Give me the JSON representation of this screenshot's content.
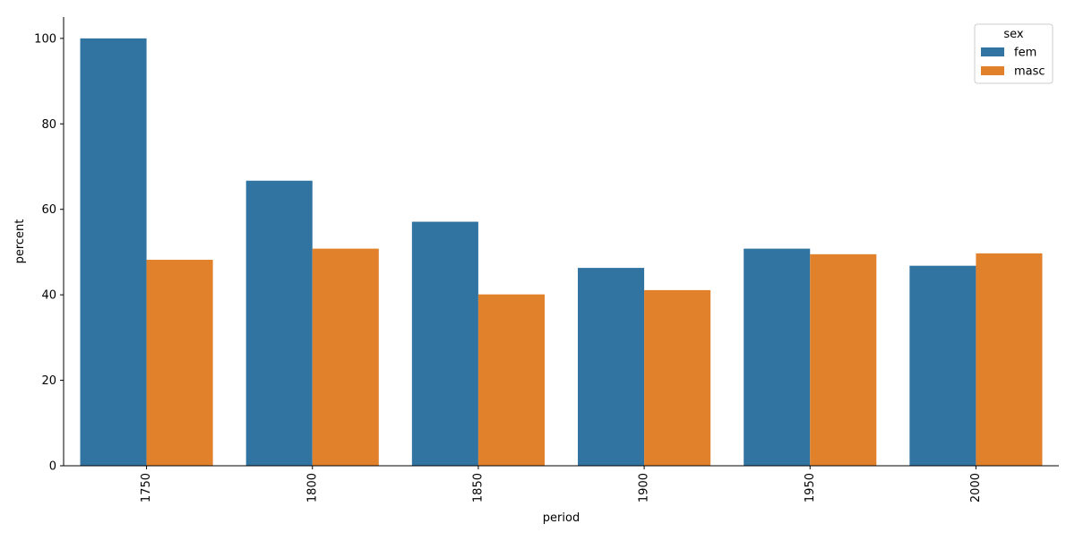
{
  "chart_data": {
    "type": "bar",
    "title": "",
    "xlabel": "period",
    "ylabel": "percent",
    "categories": [
      "1750",
      "1800",
      "1850",
      "1900",
      "1950",
      "2000"
    ],
    "series": [
      {
        "name": "fem",
        "color": "#3274a1",
        "values": [
          100.0,
          66.7,
          57.1,
          46.3,
          50.8,
          46.8
        ]
      },
      {
        "name": "masc",
        "color": "#e1812c",
        "values": [
          48.2,
          50.8,
          40.1,
          41.1,
          49.5,
          49.7
        ]
      }
    ],
    "yticks": [
      0,
      20,
      40,
      60,
      80,
      100
    ],
    "ylim": [
      0,
      105
    ],
    "grid": false,
    "legend": {
      "title": "sex",
      "placement": "top-right"
    }
  }
}
